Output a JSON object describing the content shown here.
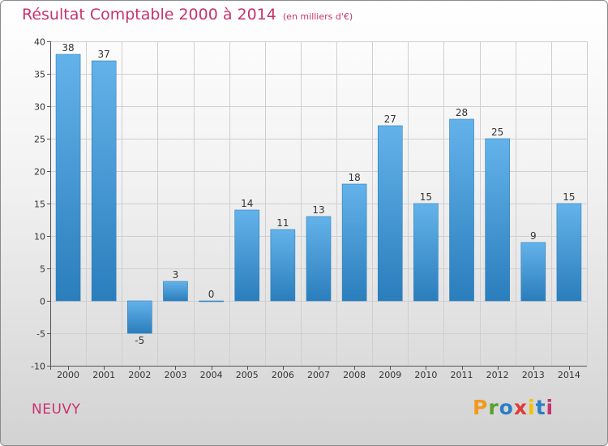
{
  "chart_data": {
    "type": "bar",
    "title": "Résultat Comptable 2000 à 2014",
    "unit": "(en milliers d'€)",
    "categories": [
      "2000",
      "2001",
      "2002",
      "2003",
      "2004",
      "2005",
      "2006",
      "2007",
      "2008",
      "2009",
      "2010",
      "2011",
      "2012",
      "2013",
      "2014"
    ],
    "values": [
      38,
      37,
      -5,
      3,
      0,
      14,
      11,
      13,
      18,
      27,
      15,
      28,
      25,
      9,
      15
    ],
    "ylim": [
      -10,
      40
    ],
    "yticks": [
      -10,
      -5,
      0,
      5,
      10,
      15,
      20,
      25,
      30,
      35,
      40
    ],
    "grid": true,
    "xlabel": "",
    "ylabel": ""
  },
  "commune": "NEUVY",
  "logo": {
    "letters": [
      "P",
      "r",
      "o",
      "x",
      "i",
      "t",
      "i"
    ],
    "colors": [
      "#f29a1f",
      "#5aa02c",
      "#2d7ec4",
      "#e03a3a",
      "#f2c200",
      "#2d7ec4",
      "#c8326e"
    ]
  },
  "colors": {
    "title": "#c8326e",
    "bar_top": "#64b2ea",
    "bar_bottom": "#2a7ebc"
  }
}
